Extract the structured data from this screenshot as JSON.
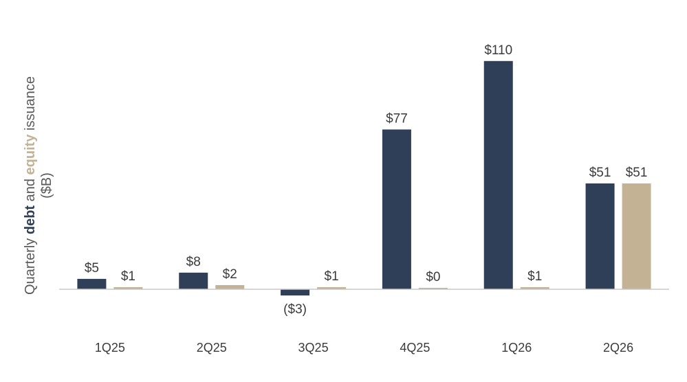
{
  "chart_data": {
    "type": "bar",
    "categories": [
      "1Q25",
      "2Q25",
      "3Q25",
      "4Q25",
      "1Q26",
      "2Q26"
    ],
    "series": [
      {
        "name": "debt",
        "color": "#2e3f57",
        "values": [
          5,
          8,
          -3,
          77,
          110,
          51
        ],
        "labels": [
          "$5",
          "$8",
          "($3)",
          "$77",
          "$110",
          "$51"
        ]
      },
      {
        "name": "equity",
        "color": "#c3b394",
        "values": [
          1,
          2,
          1,
          0,
          1,
          51
        ],
        "labels": [
          "$1",
          "$2",
          "$1",
          "$0",
          "$1",
          "$51"
        ]
      }
    ],
    "ylabel": {
      "part1": "Quarterly ",
      "part2": "debt",
      "part3": " and ",
      "part4": "equity",
      "part5": " issuance",
      "line2": "($B)"
    },
    "ylim": [
      -15,
      110
    ],
    "grid": false,
    "axis_color": "#c8c8c8"
  }
}
